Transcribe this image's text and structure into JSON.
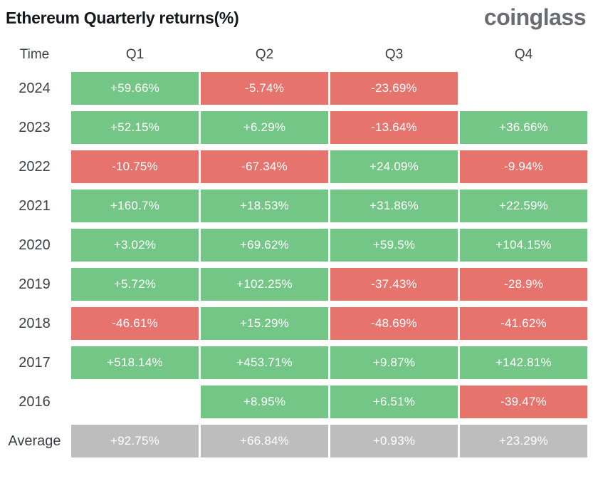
{
  "header": {
    "title": "Ethereum Quarterly returns(%)",
    "logo": "coinglass"
  },
  "colors": {
    "positive": "#74c687",
    "negative": "#e7736d",
    "average": "#bdbdbd",
    "title_text": "#16181d",
    "label_text": "#3d4047",
    "logo_text": "#696c71",
    "cell_text": "#ffffff"
  },
  "chart_data": {
    "type": "table",
    "title": "Ethereum Quarterly returns(%)",
    "columns": [
      "Time",
      "Q1",
      "Q2",
      "Q3",
      "Q4"
    ],
    "rows": [
      {
        "label": "2024",
        "kind": "year",
        "values": [
          "+59.66%",
          "-5.74%",
          "-23.69%",
          null
        ]
      },
      {
        "label": "2023",
        "kind": "year",
        "values": [
          "+52.15%",
          "+6.29%",
          "-13.64%",
          "+36.66%"
        ]
      },
      {
        "label": "2022",
        "kind": "year",
        "values": [
          "-10.75%",
          "-67.34%",
          "+24.09%",
          "-9.94%"
        ]
      },
      {
        "label": "2021",
        "kind": "year",
        "values": [
          "+160.7%",
          "+18.53%",
          "+31.86%",
          "+22.59%"
        ]
      },
      {
        "label": "2020",
        "kind": "year",
        "values": [
          "+3.02%",
          "+69.62%",
          "+59.5%",
          "+104.15%"
        ]
      },
      {
        "label": "2019",
        "kind": "year",
        "values": [
          "+5.72%",
          "+102.25%",
          "-37.43%",
          "-28.9%"
        ]
      },
      {
        "label": "2018",
        "kind": "year",
        "values": [
          "-46.61%",
          "+15.29%",
          "-48.69%",
          "-41.62%"
        ]
      },
      {
        "label": "2017",
        "kind": "year",
        "values": [
          "+518.14%",
          "+453.71%",
          "+9.87%",
          "+142.81%"
        ]
      },
      {
        "label": "2016",
        "kind": "year",
        "values": [
          null,
          "+8.95%",
          "+6.51%",
          "-39.47%"
        ]
      },
      {
        "label": "Average",
        "kind": "average",
        "values": [
          "+92.75%",
          "+66.84%",
          "+0.93%",
          "+23.29%"
        ]
      }
    ]
  }
}
